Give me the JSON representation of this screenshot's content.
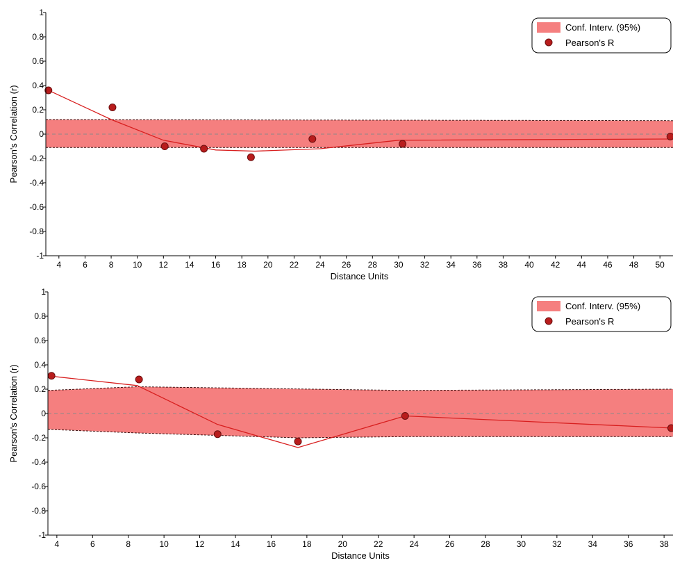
{
  "chart_data": [
    {
      "type": "line",
      "xlabel": "Distance Units",
      "ylabel": "Pearson's Correlation (r)",
      "xlim": [
        3,
        51
      ],
      "ylim": [
        -1,
        1
      ],
      "xticks": [
        4,
        6,
        8,
        10,
        12,
        14,
        16,
        18,
        20,
        22,
        24,
        26,
        28,
        30,
        32,
        34,
        36,
        38,
        40,
        42,
        44,
        46,
        48,
        50
      ],
      "yticks": [
        1,
        0.8,
        0.6,
        0.4,
        0.2,
        0,
        -0.2,
        -0.4,
        -0.6,
        -0.8,
        -1
      ],
      "ytick_labels": [
        "1",
        "0.8",
        "0.6",
        "0.4",
        "0.2",
        "0",
        "-0.2",
        "-0.4",
        "-0.6",
        "-0.8",
        "-1"
      ],
      "legend_position": "top-right",
      "legend": [
        "Conf. Interv. (95%)",
        "Pearson's R"
      ],
      "colors": {
        "band": "#f57f7f",
        "line": "#d81f1f",
        "marker": "#b81c1c",
        "marker_edge": "#6a0f0f"
      },
      "ci_upper": {
        "x": [
          3,
          51
        ],
        "y": [
          0.12,
          0.11
        ]
      },
      "ci_lower": {
        "x": [
          3,
          51
        ],
        "y": [
          -0.11,
          -0.11
        ]
      },
      "fit_line": {
        "x": [
          3,
          8,
          12,
          16,
          19,
          24,
          30,
          51
        ],
        "y": [
          0.37,
          0.12,
          -0.05,
          -0.13,
          -0.14,
          -0.12,
          -0.05,
          -0.04
        ]
      },
      "points": {
        "x": [
          3.2,
          8.1,
          12.1,
          15.1,
          18.7,
          23.4,
          30.3,
          50.8
        ],
        "y": [
          0.36,
          0.22,
          -0.1,
          -0.12,
          -0.19,
          -0.04,
          -0.08,
          -0.02
        ]
      }
    },
    {
      "type": "line",
      "xlabel": "Distance Units",
      "ylabel": "Pearson's Correlation (r)",
      "xlim": [
        3.5,
        38.5
      ],
      "ylim": [
        -1,
        1
      ],
      "xticks": [
        4,
        6,
        8,
        10,
        12,
        14,
        16,
        18,
        20,
        22,
        24,
        26,
        28,
        30,
        32,
        34,
        36,
        38
      ],
      "yticks": [
        1,
        0.8,
        0.6,
        0.4,
        0.2,
        0,
        -0.2,
        -0.4,
        -0.6,
        -0.8,
        -1
      ],
      "ytick_labels": [
        "1",
        "0.8",
        "0.6",
        "0.4",
        "0.2",
        "0",
        "-0.2",
        "-0.4",
        "-0.6",
        "-0.8",
        "-1"
      ],
      "legend_position": "top-right",
      "legend": [
        "Conf. Interv. (95%)",
        "Pearson's R"
      ],
      "colors": {
        "band": "#f57f7f",
        "line": "#d81f1f",
        "marker": "#b81c1c",
        "marker_edge": "#6a0f0f"
      },
      "ci_upper": {
        "x": [
          3.5,
          8.5,
          23.5,
          38.5
        ],
        "y": [
          0.19,
          0.22,
          0.19,
          0.2
        ]
      },
      "ci_lower": {
        "x": [
          3.5,
          8.5,
          17.5,
          23.5,
          38.5
        ],
        "y": [
          -0.13,
          -0.16,
          -0.2,
          -0.19,
          -0.19
        ]
      },
      "fit_line": {
        "x": [
          3.5,
          8.5,
          13,
          17.5,
          23.5,
          38.5
        ],
        "y": [
          0.31,
          0.23,
          -0.09,
          -0.28,
          -0.02,
          -0.12
        ]
      },
      "points": {
        "x": [
          3.7,
          8.6,
          13.0,
          17.5,
          23.5,
          38.4
        ],
        "y": [
          0.31,
          0.28,
          -0.17,
          -0.23,
          -0.02,
          -0.12
        ]
      }
    }
  ]
}
